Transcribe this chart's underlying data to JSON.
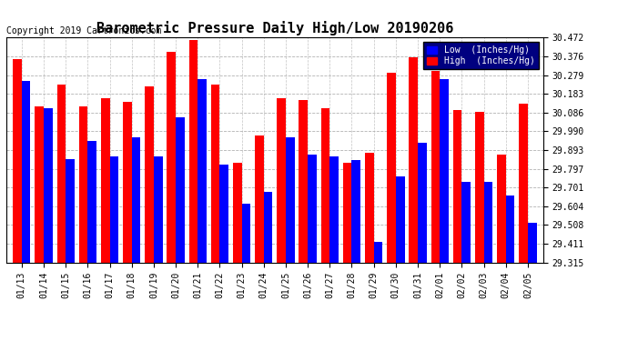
{
  "title": "Barometric Pressure Daily High/Low 20190206",
  "copyright": "Copyright 2019 Cartronics.com",
  "dates": [
    "01/13",
    "01/14",
    "01/15",
    "01/16",
    "01/17",
    "01/18",
    "01/19",
    "01/20",
    "01/21",
    "01/22",
    "01/23",
    "01/24",
    "01/25",
    "01/26",
    "01/27",
    "01/28",
    "01/29",
    "01/30",
    "01/31",
    "02/01",
    "02/02",
    "02/03",
    "02/04",
    "02/05"
  ],
  "low": [
    30.248,
    30.108,
    29.848,
    29.94,
    29.86,
    29.96,
    29.86,
    30.06,
    30.26,
    29.82,
    29.62,
    29.68,
    29.96,
    29.87,
    29.86,
    29.84,
    29.42,
    29.76,
    29.93,
    30.26,
    29.73,
    29.73,
    29.66,
    29.52
  ],
  "high": [
    30.36,
    30.12,
    30.23,
    30.12,
    30.16,
    30.14,
    30.22,
    30.4,
    30.46,
    30.23,
    29.83,
    29.97,
    30.16,
    30.15,
    30.11,
    29.83,
    29.88,
    30.29,
    30.37,
    30.3,
    30.1,
    30.09,
    29.87,
    30.13
  ],
  "ylim_min": 29.315,
  "ylim_max": 30.472,
  "yticks": [
    29.315,
    29.411,
    29.508,
    29.604,
    29.701,
    29.797,
    29.893,
    29.99,
    30.086,
    30.183,
    30.279,
    30.376,
    30.472
  ],
  "low_color": "#0000ff",
  "high_color": "#ff0000",
  "bg_color": "#ffffff",
  "grid_color": "#aaaaaa",
  "title_fontsize": 11,
  "copyright_fontsize": 7,
  "legend_low_label": "Low  (Inches/Hg)",
  "legend_high_label": "High  (Inches/Hg)",
  "legend_bg": "#000080"
}
